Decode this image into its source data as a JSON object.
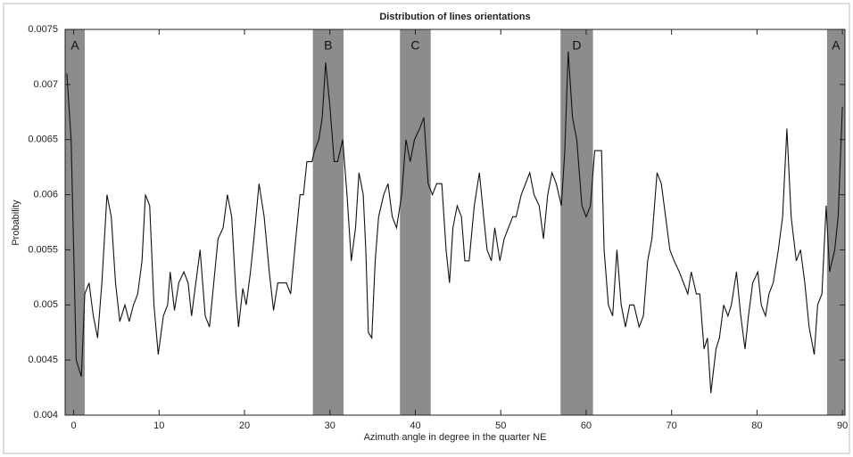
{
  "chart_data": {
    "type": "line",
    "title": "Distribution of lines orientations",
    "xlabel": "Azimuth angle in degree in the quarter NE",
    "ylabel": "Probability",
    "xlim": [
      -1,
      90.3
    ],
    "ylim": [
      0.004,
      0.0075
    ],
    "xticks": [
      0,
      10,
      20,
      30,
      40,
      50,
      60,
      70,
      80,
      90
    ],
    "yticks": [
      0.004,
      0.0045,
      0.005,
      0.0055,
      0.006,
      0.0065,
      0.007,
      0.0075
    ],
    "band_color": "#8c8c8c",
    "bands": [
      {
        "label": "A",
        "range": [
          -1,
          1.3
        ]
      },
      {
        "label": "B",
        "range": [
          28.0,
          31.6
        ]
      },
      {
        "label": "C",
        "range": [
          38.2,
          41.8
        ]
      },
      {
        "label": "D",
        "range": [
          57.0,
          60.8
        ]
      },
      {
        "label": "A",
        "range": [
          88.2,
          90.3
        ]
      }
    ],
    "series": [
      {
        "name": "Probability",
        "color": "#111111",
        "x": [
          -0.8,
          -0.3,
          0.3,
          0.9,
          1.3,
          1.8,
          2.3,
          2.8,
          3.3,
          3.9,
          4.4,
          4.9,
          5.4,
          6.0,
          6.5,
          7.0,
          7.5,
          8.0,
          8.4,
          8.9,
          9.4,
          9.9,
          10.5,
          11.0,
          11.3,
          11.8,
          12.3,
          12.9,
          13.4,
          13.8,
          14.3,
          14.8,
          15.4,
          15.9,
          16.4,
          16.9,
          17.5,
          18.0,
          18.5,
          19.0,
          19.3,
          19.8,
          20.2,
          20.7,
          21.1,
          21.7,
          22.3,
          22.9,
          23.4,
          23.9,
          24.5,
          24.9,
          25.4,
          26.0,
          26.5,
          26.9,
          27.3,
          27.9,
          28.2,
          28.7,
          29.1,
          29.5,
          30.0,
          30.5,
          30.9,
          31.5,
          32.0,
          32.5,
          33.0,
          33.4,
          33.9,
          34.2,
          34.5,
          34.9,
          35.3,
          35.7,
          36.3,
          36.8,
          37.3,
          37.8,
          38.4,
          38.9,
          39.4,
          39.9,
          40.5,
          41.0,
          41.5,
          42.0,
          42.5,
          43.1,
          43.6,
          44.0,
          44.4,
          44.9,
          45.4,
          45.8,
          46.3,
          46.9,
          47.5,
          48.0,
          48.4,
          48.9,
          49.3,
          49.9,
          50.4,
          50.9,
          51.4,
          51.8,
          52.4,
          52.9,
          53.4,
          53.9,
          54.5,
          55.0,
          55.5,
          56.0,
          56.5,
          57.1,
          57.5,
          57.9,
          58.4,
          58.9,
          59.5,
          60.0,
          60.5,
          61.0,
          61.8,
          62.1,
          62.6,
          63.1,
          63.6,
          64.1,
          64.6,
          65.1,
          65.6,
          66.2,
          66.7,
          67.2,
          67.7,
          68.3,
          68.8,
          69.3,
          69.8,
          70.3,
          70.9,
          71.4,
          71.9,
          72.3,
          72.9,
          73.3,
          73.8,
          74.2,
          74.6,
          75.2,
          75.6,
          76.1,
          76.6,
          77.0,
          77.6,
          78.1,
          78.6,
          79.0,
          79.5,
          80.1,
          80.5,
          81.0,
          81.4,
          81.9,
          82.5,
          83.0,
          83.5,
          84.0,
          84.6,
          85.1,
          85.6,
          86.1,
          86.7,
          87.1,
          87.6,
          88.1,
          88.5,
          89.1,
          89.5,
          90.0
        ],
        "values": [
          0.0071,
          0.0065,
          0.0045,
          0.00435,
          0.0051,
          0.0052,
          0.0049,
          0.0047,
          0.0052,
          0.006,
          0.0058,
          0.0052,
          0.00485,
          0.005,
          0.00485,
          0.005,
          0.0051,
          0.0054,
          0.006,
          0.0059,
          0.005,
          0.00455,
          0.0049,
          0.005,
          0.0053,
          0.00495,
          0.0052,
          0.0053,
          0.0052,
          0.0049,
          0.0052,
          0.0055,
          0.0049,
          0.0048,
          0.0052,
          0.0056,
          0.0057,
          0.006,
          0.0058,
          0.0051,
          0.0048,
          0.00515,
          0.005,
          0.0053,
          0.0056,
          0.0061,
          0.0058,
          0.0053,
          0.00495,
          0.0052,
          0.0052,
          0.0052,
          0.0051,
          0.0056,
          0.006,
          0.006,
          0.0063,
          0.0063,
          0.0064,
          0.0065,
          0.0067,
          0.0072,
          0.0068,
          0.0063,
          0.0063,
          0.0065,
          0.006,
          0.0054,
          0.0057,
          0.0062,
          0.006,
          0.0055,
          0.00475,
          0.0047,
          0.0054,
          0.0058,
          0.006,
          0.0061,
          0.0058,
          0.0057,
          0.006,
          0.0065,
          0.0063,
          0.0065,
          0.0066,
          0.0067,
          0.0061,
          0.006,
          0.0061,
          0.0061,
          0.0055,
          0.0052,
          0.0057,
          0.0059,
          0.0058,
          0.0054,
          0.0054,
          0.0059,
          0.0062,
          0.0058,
          0.0055,
          0.0054,
          0.0057,
          0.0054,
          0.0056,
          0.0057,
          0.0058,
          0.0058,
          0.006,
          0.0061,
          0.0062,
          0.006,
          0.0059,
          0.0056,
          0.006,
          0.0062,
          0.0061,
          0.0059,
          0.0064,
          0.0073,
          0.0067,
          0.0065,
          0.0059,
          0.0058,
          0.0059,
          0.0064,
          0.0064,
          0.0055,
          0.005,
          0.0049,
          0.0055,
          0.005,
          0.0048,
          0.005,
          0.005,
          0.0048,
          0.0049,
          0.0054,
          0.0056,
          0.0062,
          0.0061,
          0.0058,
          0.0055,
          0.0054,
          0.0053,
          0.0052,
          0.0051,
          0.0053,
          0.0051,
          0.0051,
          0.0046,
          0.0047,
          0.0042,
          0.0046,
          0.0047,
          0.005,
          0.0049,
          0.005,
          0.0053,
          0.0049,
          0.0046,
          0.0049,
          0.0052,
          0.0053,
          0.005,
          0.0049,
          0.0051,
          0.0052,
          0.0055,
          0.0058,
          0.0066,
          0.0058,
          0.0054,
          0.0055,
          0.0052,
          0.0048,
          0.00455,
          0.005,
          0.0051,
          0.0059,
          0.0053,
          0.0055,
          0.0058,
          0.0068
        ]
      }
    ]
  }
}
